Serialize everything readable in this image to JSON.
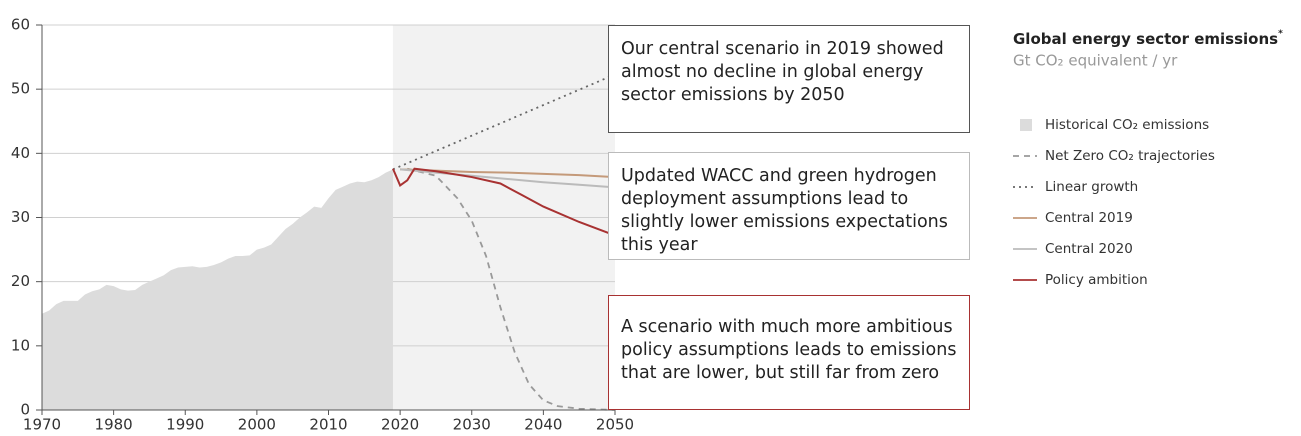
{
  "chart_data": {
    "type": "line",
    "legend_title": "Global energy sector emissions",
    "legend_title_note": "*",
    "legend_subtitle": "Gt CO₂ equivalent / yr",
    "xlim": [
      1970,
      2050
    ],
    "xticks": [
      1970,
      1980,
      1990,
      2000,
      2010,
      2020,
      2030,
      2040,
      2050
    ],
    "ylim": [
      0,
      60
    ],
    "yticks": [
      0,
      10,
      20,
      30,
      40,
      50,
      60
    ],
    "grid": true,
    "shaded_xrange": [
      2019,
      2050
    ],
    "shade_color": "#f2f2f2",
    "series": [
      {
        "name": "Historical CO₂ emissions",
        "kind": "area",
        "color": "#dcdcdc",
        "x": [
          1970,
          1971,
          1972,
          1973,
          1974,
          1975,
          1976,
          1977,
          1978,
          1979,
          1980,
          1981,
          1982,
          1983,
          1984,
          1985,
          1986,
          1987,
          1988,
          1989,
          1990,
          1991,
          1992,
          1993,
          1994,
          1995,
          1996,
          1997,
          1998,
          1999,
          2000,
          2001,
          2002,
          2003,
          2004,
          2005,
          2006,
          2007,
          2008,
          2009,
          2010,
          2011,
          2012,
          2013,
          2014,
          2015,
          2016,
          2017,
          2018,
          2019
        ],
        "values": [
          15,
          15.5,
          16.5,
          17,
          17,
          17,
          18,
          18.5,
          18.8,
          19.5,
          19.3,
          18.8,
          18.6,
          18.7,
          19.5,
          20,
          20.5,
          21,
          21.8,
          22.2,
          22.3,
          22.4,
          22.2,
          22.3,
          22.6,
          23,
          23.6,
          24,
          24,
          24.1,
          25,
          25.3,
          25.8,
          27,
          28.2,
          29,
          30,
          30.8,
          31.7,
          31.5,
          33,
          34.3,
          34.8,
          35.3,
          35.6,
          35.5,
          35.8,
          36.3,
          37,
          37.5
        ]
      },
      {
        "name": "Net Zero CO₂ trajectories",
        "kind": "line",
        "dash": "dashed",
        "color": "#999999",
        "x": [
          2021,
          2025,
          2028,
          2030,
          2032,
          2034,
          2036,
          2038,
          2040,
          2042,
          2045,
          2050
        ],
        "values": [
          37.6,
          36.5,
          33,
          29.5,
          24,
          16,
          9,
          4,
          1.5,
          0.6,
          0.2,
          0
        ]
      },
      {
        "name": "Linear growth",
        "kind": "line",
        "dash": "dotted",
        "color": "#666666",
        "x": [
          2019,
          2050
        ],
        "values": [
          37.5,
          52.3
        ]
      },
      {
        "name": "Central 2019",
        "kind": "line",
        "dash": "solid",
        "color": "#c49a7a",
        "x": [
          2020,
          2025,
          2030,
          2035,
          2040,
          2045,
          2050
        ],
        "values": [
          37.5,
          37.3,
          37.1,
          37,
          36.8,
          36.6,
          36.3
        ]
      },
      {
        "name": "Central 2020",
        "kind": "line",
        "dash": "solid",
        "color": "#bbbbbb",
        "x": [
          2020,
          2025,
          2030,
          2035,
          2040,
          2045,
          2050
        ],
        "values": [
          37.5,
          37,
          36.5,
          36,
          35.5,
          35.1,
          34.7
        ]
      },
      {
        "name": "Policy ambition",
        "kind": "line",
        "dash": "solid",
        "color": "#a83232",
        "x": [
          2019,
          2020,
          2021,
          2022,
          2025,
          2030,
          2034,
          2037,
          2040,
          2045,
          2050
        ],
        "values": [
          37.6,
          35,
          35.8,
          37.6,
          37.2,
          36.3,
          35.3,
          33.5,
          31.7,
          29.3,
          27.2
        ]
      }
    ],
    "annotations": [
      {
        "lines": [
          "Our central scenario in 2019 showed",
          "almost no decline in global energy",
          "sector emissions by 2050"
        ],
        "border": "#555555"
      },
      {
        "lines": [
          "Updated WACC and green hydrogen",
          "deployment assumptions lead to",
          "slightly lower emissions expectations",
          "this year"
        ],
        "border": "#bbbbbb"
      },
      {
        "lines": [
          "A scenario with much more ambitious",
          "policy assumptions leads to emissions",
          "that are lower, but still far from zero"
        ],
        "border": "#a83232"
      }
    ]
  }
}
